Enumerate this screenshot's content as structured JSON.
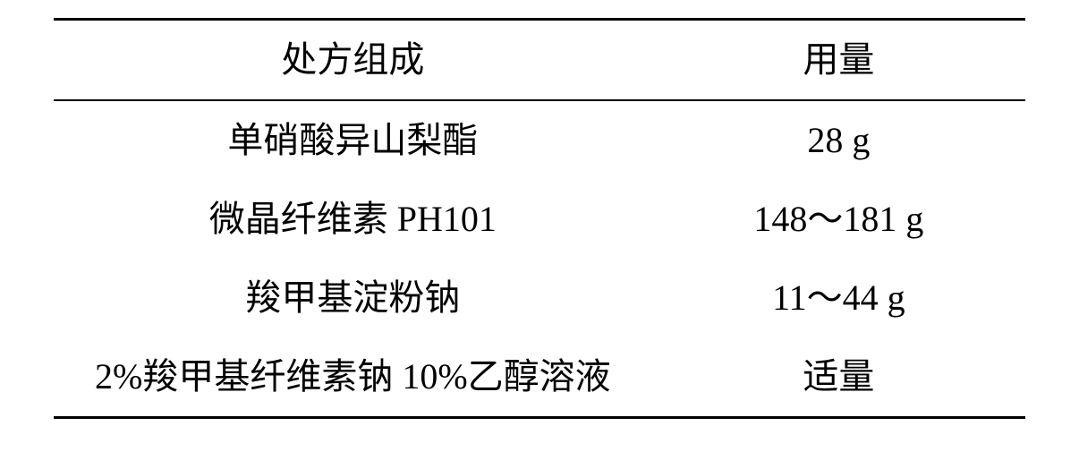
{
  "table": {
    "columns": [
      "处方组成",
      "用量"
    ],
    "rows": [
      [
        "单硝酸异山梨酯",
        "28 g"
      ],
      [
        "微晶纤维素 PH101",
        "148～181 g"
      ],
      [
        "羧甲基淀粉钠",
        "11～44 g"
      ],
      [
        "2%羧甲基纤维素钠 10%乙醇溶液",
        "适量"
      ]
    ],
    "border_color": "#000000",
    "background_color": "#ffffff",
    "font_size_pt": 30,
    "text_color": "#000000",
    "col_widths": [
      "62%",
      "38%"
    ]
  }
}
